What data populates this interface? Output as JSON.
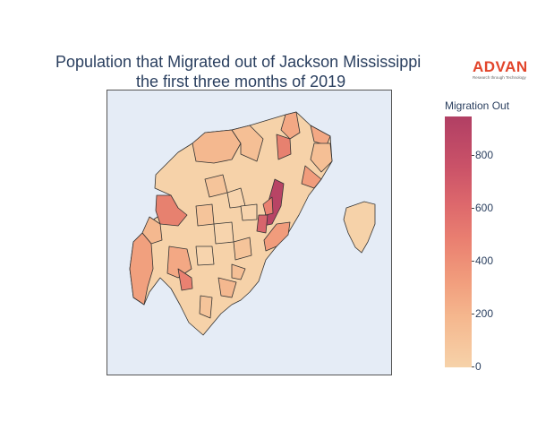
{
  "title": {
    "line1": "Population that Migrated out of Jackson Mississippi",
    "line2": "the first three months of 2019"
  },
  "logo": {
    "word": "ADVAN",
    "tagline": "Research through Technology",
    "color": "#e2452b"
  },
  "colorbar": {
    "title": "Migration Out",
    "min": 0,
    "max": 950,
    "ticks": [
      "0",
      "200",
      "400",
      "600",
      "800"
    ],
    "colorscale": [
      "#f6d2a9",
      "#f5b78e",
      "#f19c7c",
      "#ea8171",
      "#dd686c",
      "#ca5268",
      "#b13f64"
    ]
  },
  "map": {
    "background": "#e5ecf6",
    "region_border": "#333333"
  },
  "chart_data": {
    "type": "choropleth",
    "title": "Population that Migrated out of Jackson Mississippi the first three months of 2019",
    "colorbar_title": "Migration Out",
    "range": [
      0,
      950
    ],
    "note": "Census block groups of Jackson MS area; highest values (~900) in a central-east tract, secondary highs (~400-600) on east and west edges; most tracts 0-200."
  }
}
